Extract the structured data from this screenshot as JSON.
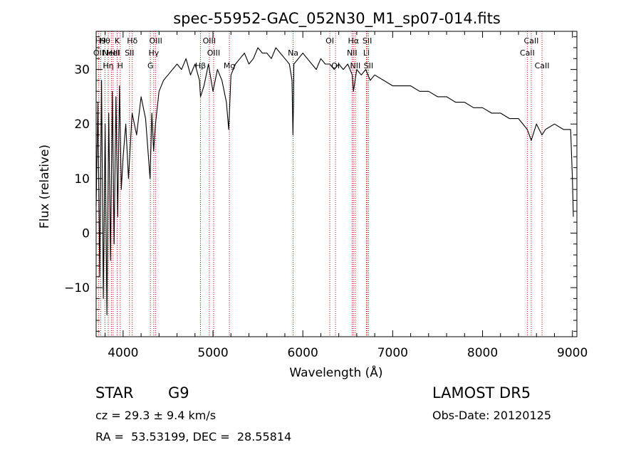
{
  "chart_data": {
    "type": "line",
    "title": "spec-55952-GAC_052N30_M1_sp07-014.fits",
    "xlabel": "Wavelength (Å)",
    "ylabel": "Flux (relative)",
    "xlim": [
      3700,
      9050
    ],
    "ylim": [
      -19,
      37
    ],
    "x_ticks": [
      4000,
      5000,
      6000,
      7000,
      8000,
      9000
    ],
    "y_ticks": [
      -10,
      0,
      10,
      20,
      30
    ],
    "grid": false,
    "series": [
      {
        "color": "#000000",
        "x": [
          3700,
          3720,
          3740,
          3760,
          3780,
          3800,
          3820,
          3840,
          3860,
          3880,
          3900,
          3920,
          3940,
          3960,
          3980,
          4000,
          4030,
          4060,
          4100,
          4150,
          4200,
          4250,
          4300,
          4320,
          4340,
          4360,
          4400,
          4450,
          4500,
          4550,
          4600,
          4650,
          4700,
          4750,
          4800,
          4850,
          4861,
          4900,
          4950,
          5000,
          5050,
          5100,
          5150,
          5175,
          5183,
          5200,
          5250,
          5300,
          5350,
          5400,
          5450,
          5500,
          5550,
          5600,
          5650,
          5700,
          5750,
          5800,
          5850,
          5880,
          5890,
          5896,
          5900,
          5950,
          6000,
          6050,
          6100,
          6150,
          6200,
          6250,
          6300,
          6350,
          6400,
          6450,
          6500,
          6550,
          6563,
          6600,
          6650,
          6700,
          6750,
          6800,
          6900,
          7000,
          7100,
          7200,
          7300,
          7400,
          7500,
          7600,
          7700,
          7800,
          7900,
          8000,
          8100,
          8200,
          8300,
          8400,
          8498,
          8542,
          8600,
          8662,
          8700,
          8800,
          8900,
          8950,
          8980,
          9000,
          9010
        ],
        "y": [
          5,
          24,
          -8,
          28,
          -12,
          20,
          -15,
          22,
          -5,
          26,
          -2,
          25,
          3,
          27,
          8,
          14,
          20,
          10,
          22,
          18,
          25,
          21,
          10,
          22,
          15,
          20,
          26,
          28,
          29,
          30,
          31,
          30,
          32,
          29,
          31,
          28,
          25,
          27,
          31,
          26,
          30,
          28,
          24,
          19,
          22,
          29,
          31,
          32,
          33,
          31,
          32,
          34,
          33,
          33,
          32,
          34,
          33,
          32,
          31,
          28,
          18,
          24,
          31,
          32,
          33,
          32,
          31,
          30,
          32,
          31,
          31,
          30,
          31,
          30,
          31,
          29,
          26,
          30,
          29,
          30,
          28,
          29,
          28,
          27,
          27,
          27,
          26,
          26,
          25,
          25,
          24,
          24,
          23,
          23,
          22,
          22,
          21,
          21,
          19,
          17,
          20,
          18,
          19,
          20,
          19,
          19,
          19,
          10,
          3
        ]
      }
    ],
    "lines": [
      {
        "x": 3727,
        "label": "OII",
        "row": 2
      },
      {
        "x": 3750,
        "label": "H9",
        "row": 1
      },
      {
        "x": 3798,
        "label": "Hθ",
        "row": 1
      },
      {
        "x": 3835,
        "label": "Hη",
        "row": 3
      },
      {
        "x": 3869,
        "label": "NeIII",
        "row": 2
      },
      {
        "x": 3889,
        "label": "HeI",
        "row": 2
      },
      {
        "x": 3934,
        "label": "K",
        "row": 1
      },
      {
        "x": 3968,
        "label": "H",
        "row": 3
      },
      {
        "x": 4071,
        "label": "SII",
        "row": 2
      },
      {
        "x": 4102,
        "label": "Hδ",
        "row": 1
      },
      {
        "x": 4304,
        "label": "G",
        "row": 3
      },
      {
        "x": 4341,
        "label": "Hγ",
        "row": 2
      },
      {
        "x": 4363,
        "label": "OIII",
        "row": 1
      },
      {
        "x": 4861,
        "label": "Hβ",
        "row": 3
      },
      {
        "x": 4959,
        "label": "OIII",
        "row": 1
      },
      {
        "x": 5007,
        "label": "OIII",
        "row": 2
      },
      {
        "x": 5183,
        "label": "Mg",
        "row": 3
      },
      {
        "x": 5892,
        "label": "Na",
        "row": 2
      },
      {
        "x": 6300,
        "label": "OI",
        "row": 1
      },
      {
        "x": 6364,
        "label": "OI",
        "row": 3
      },
      {
        "x": 6548,
        "label": "NII",
        "row": 2
      },
      {
        "x": 6563,
        "label": "Hα",
        "row": 1
      },
      {
        "x": 6584,
        "label": "NII",
        "row": 3
      },
      {
        "x": 6708,
        "label": "Li",
        "row": 2
      },
      {
        "x": 6717,
        "label": "SII",
        "row": 1
      },
      {
        "x": 6731,
        "label": "SII",
        "row": 3
      },
      {
        "x": 8498,
        "label": "CaII",
        "row": 2
      },
      {
        "x": 8542,
        "label": "CaII",
        "row": 1
      },
      {
        "x": 8662,
        "label": "CaII",
        "row": 3
      }
    ]
  },
  "info": {
    "object_class": "STAR",
    "subclass": "G9",
    "survey": "LAMOST DR5",
    "redshift": "cz = 29.3 ± 9.4 km/s",
    "obs_date": "Obs-Date: 20120125",
    "coords": "RA =  53.53199, DEC =  28.55814"
  }
}
